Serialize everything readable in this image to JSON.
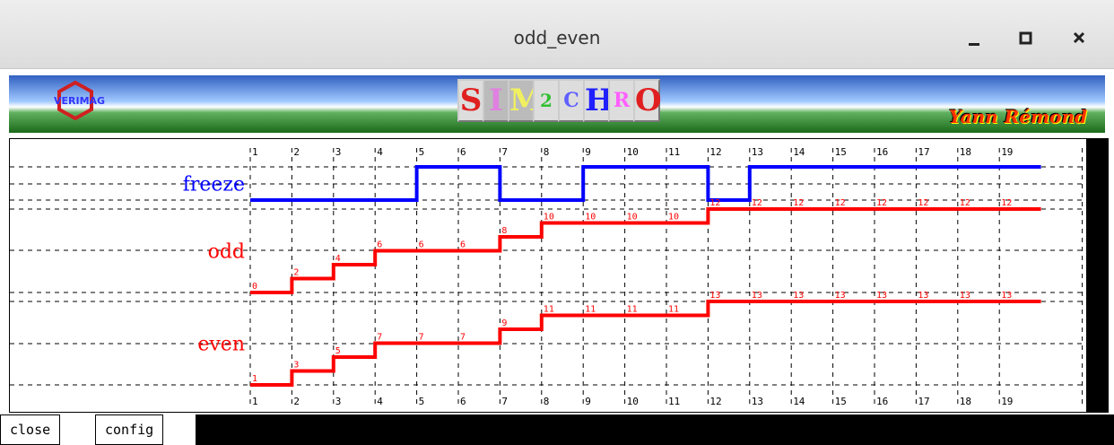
{
  "window": {
    "title": "odd_even"
  },
  "banner": {
    "left_logo": "VERIMAG",
    "logo": [
      "S",
      "I",
      "M",
      "2",
      "C",
      "H",
      "R",
      "O"
    ],
    "author": "Yann Rémond"
  },
  "timeline": {
    "steps": [
      1,
      2,
      3,
      4,
      5,
      6,
      7,
      8,
      9,
      10,
      11,
      12,
      13,
      14,
      15,
      16,
      17,
      18,
      19
    ],
    "signals": [
      {
        "name": "freeze",
        "color": "#0000ff",
        "labels": false,
        "values": [
          0,
          0,
          0,
          0,
          1,
          1,
          0,
          0,
          1,
          1,
          1,
          0,
          1,
          1,
          1,
          1,
          1,
          1,
          1
        ]
      },
      {
        "name": "odd",
        "color": "#ff0000",
        "labels": true,
        "values": [
          0,
          2,
          4,
          6,
          6,
          6,
          8,
          10,
          10,
          10,
          10,
          12,
          12,
          12,
          12,
          12,
          12,
          12,
          12
        ]
      },
      {
        "name": "even",
        "color": "#ff0000",
        "labels": true,
        "values": [
          1,
          3,
          5,
          7,
          7,
          7,
          9,
          11,
          11,
          11,
          11,
          13,
          13,
          13,
          13,
          13,
          13,
          13,
          13
        ]
      }
    ]
  },
  "buttons": [
    "close",
    "config"
  ]
}
